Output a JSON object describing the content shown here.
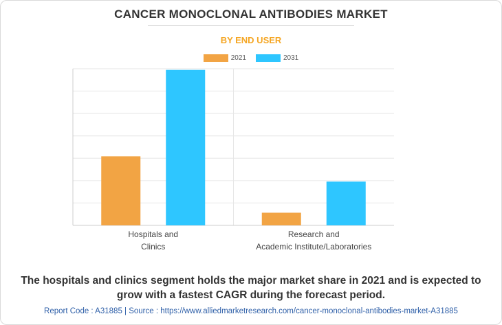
{
  "title": "CANCER MONOCLONAL ANTIBODIES MARKET",
  "subtitle": "BY END USER",
  "caption_line1": "The hospitals and clinics segment holds the major market share in 2021 and is expected to",
  "caption_line2": "grow with a fastest CAGR during the forecast period.",
  "footer": "Report Code : A31885  |  Source : https://www.alliedmarketresearch.com/cancer-monoclonal-antibodies-market-A31885",
  "colors": {
    "series_2021": "#f2a444",
    "series_2031": "#2ec6ff",
    "grid": "#e6e6e6",
    "axis": "#cccccc"
  },
  "chart_data": {
    "type": "bar",
    "title": "CANCER MONOCLONAL ANTIBODIES MARKET",
    "subtitle": "BY END USER",
    "xlabel": "",
    "ylabel": "",
    "ylim": [
      0,
      68
    ],
    "grid": true,
    "legend_position": "top",
    "categories": [
      [
        "Hospitals and",
        "Clinics"
      ],
      [
        "Research and",
        "Academic Institute/Laboratories"
      ]
    ],
    "series": [
      {
        "name": "2021",
        "values": [
          30,
          5.5
        ]
      },
      {
        "name": "2031",
        "values": [
          67.5,
          19
        ]
      }
    ]
  }
}
